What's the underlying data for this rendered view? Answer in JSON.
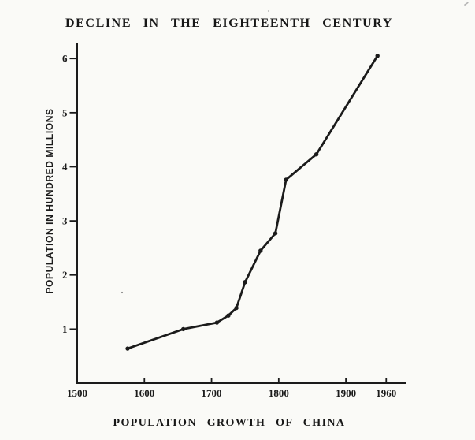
{
  "page": {
    "background_color": "#fafaf7",
    "ink_color": "#1b1b1b"
  },
  "chart_data": {
    "type": "line",
    "title": "DECLINE IN THE EIGHTEENTH CENTURY",
    "xlabel": "POPULATION GROWTH OF CHINA",
    "ylabel": "POPULATION IN HUNDRED MILLIONS",
    "xlim": [
      1500,
      1989
    ],
    "ylim": [
      0,
      6.28
    ],
    "x_ticks": [
      1500,
      1600,
      1700,
      1800,
      1900,
      1960
    ],
    "y_ticks": [
      1,
      2,
      3,
      4,
      5,
      6
    ],
    "grid": false,
    "legend": null,
    "series": [
      {
        "name": "population-of-china",
        "points": [
          {
            "year": 1575,
            "value": 0.64
          },
          {
            "year": 1658,
            "value": 1.0
          },
          {
            "year": 1708,
            "value": 1.12
          },
          {
            "year": 1725,
            "value": 1.25
          },
          {
            "year": 1737,
            "value": 1.39
          },
          {
            "year": 1750,
            "value": 1.87
          },
          {
            "year": 1773,
            "value": 2.45
          },
          {
            "year": 1795,
            "value": 2.77
          },
          {
            "year": 1811,
            "value": 3.76
          },
          {
            "year": 1856,
            "value": 4.23
          },
          {
            "year": 1947,
            "value": 6.05
          }
        ]
      }
    ]
  }
}
